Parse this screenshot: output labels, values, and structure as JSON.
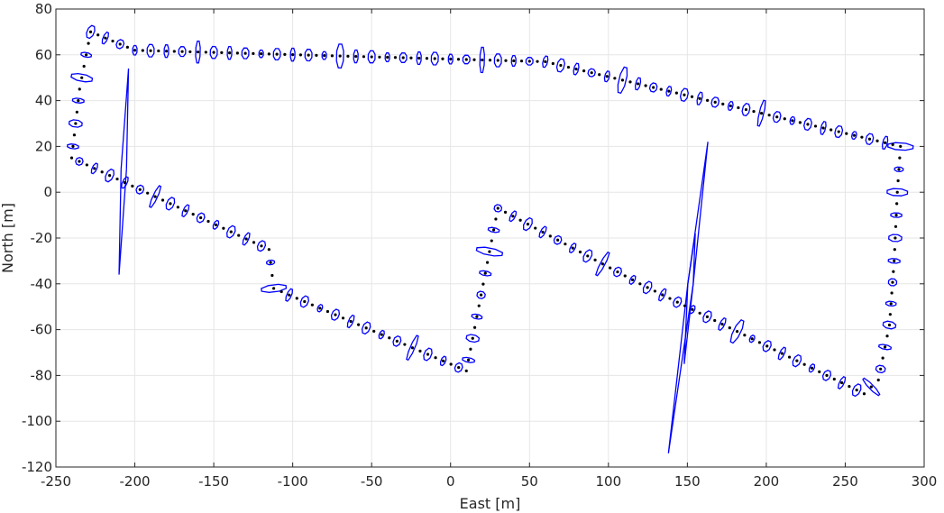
{
  "chart_data": {
    "type": "scatter",
    "title": "",
    "xlabel": "East [m]",
    "ylabel": "North [m]",
    "xlim": [
      -250,
      300
    ],
    "ylim": [
      -120,
      80
    ],
    "xticks": [
      -250,
      -200,
      -150,
      -100,
      -50,
      0,
      50,
      100,
      150,
      200,
      250,
      300
    ],
    "yticks": [
      -120,
      -100,
      -80,
      -60,
      -40,
      -20,
      0,
      20,
      40,
      60,
      80
    ],
    "xtick_labels": [
      "-250",
      "-200",
      "-150",
      "-100",
      "-50",
      "0",
      "50",
      "100",
      "150",
      "200",
      "250",
      "300"
    ],
    "ytick_labels": [
      "-120",
      "-100",
      "-80",
      "-60",
      "-40",
      "-20",
      "0",
      "20",
      "40",
      "60",
      "80"
    ],
    "grid": true,
    "legend": "none",
    "colors": {
      "estimate": "#000000",
      "ellipse": "#0000ff",
      "axes": "#262626",
      "grid": "#e6e6e6"
    },
    "route_waypoints": [
      [
        283,
        0
      ],
      [
        281,
        -30
      ],
      [
        278,
        -58
      ],
      [
        271,
        -82
      ],
      [
        262,
        -88
      ],
      [
        120,
        -40
      ],
      [
        30,
        -7
      ],
      [
        10,
        -78
      ],
      [
        -112,
        -42
      ],
      [
        -115,
        -25
      ],
      [
        -240,
        15
      ],
      [
        -235,
        45
      ],
      [
        -228,
        70
      ],
      [
        -200,
        62
      ],
      [
        60,
        57
      ],
      [
        285,
        20
      ],
      [
        283,
        0
      ]
    ],
    "outlier_spikes": [
      {
        "from": [
          -207,
          10
        ],
        "to": [
          -210,
          -36
        ]
      },
      {
        "from": [
          -207,
          10
        ],
        "to": [
          -204,
          54
        ]
      },
      {
        "from": [
          152,
          -40
        ],
        "to": [
          138,
          -114
        ]
      },
      {
        "from": [
          152,
          -40
        ],
        "to": [
          163,
          22
        ]
      },
      {
        "from": [
          152,
          -40
        ],
        "to": [
          148,
          -75
        ]
      },
      {
        "from": [
          152,
          -40
        ],
        "to": [
          155,
          -18
        ]
      }
    ]
  }
}
